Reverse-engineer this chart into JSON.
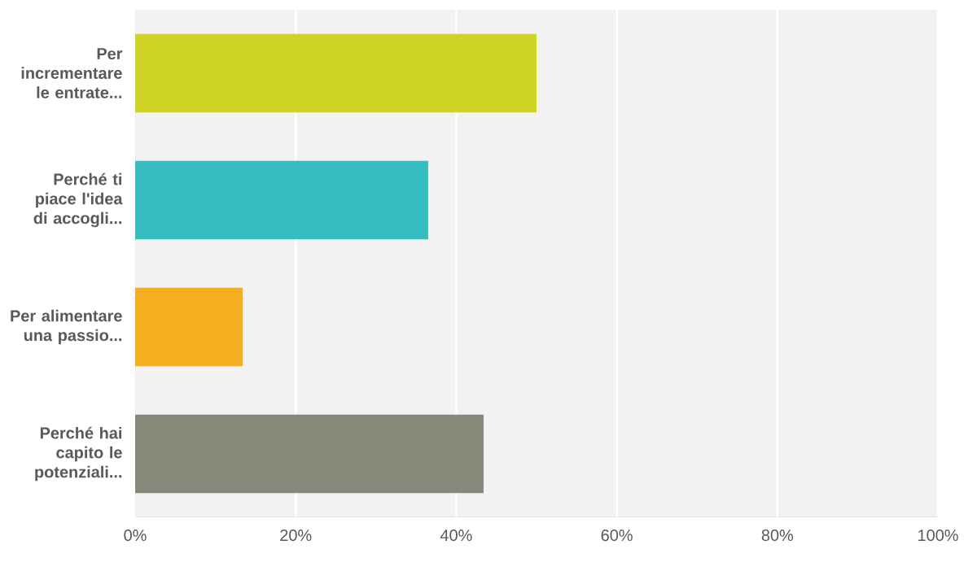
{
  "chart_data": {
    "type": "bar",
    "orientation": "horizontal",
    "categories": [
      "Per incrementare le entrate...",
      "Perché ti piace l'idea di accogli...",
      "Per alimentare una passio...",
      "Perché hai capito le potenziali..."
    ],
    "values": [
      50,
      36.5,
      13.4,
      43.4
    ],
    "colors": [
      "#cdd425",
      "#35bdbf",
      "#f5ae1f",
      "#88887a"
    ],
    "xlim": [
      0,
      100
    ],
    "xticks": [
      {
        "value": 0,
        "label": "0%"
      },
      {
        "value": 20,
        "label": "20%"
      },
      {
        "value": 40,
        "label": "40%"
      },
      {
        "value": 60,
        "label": "60%"
      },
      {
        "value": 80,
        "label": "80%"
      },
      {
        "value": 100,
        "label": "100%"
      }
    ],
    "grid": "x"
  }
}
